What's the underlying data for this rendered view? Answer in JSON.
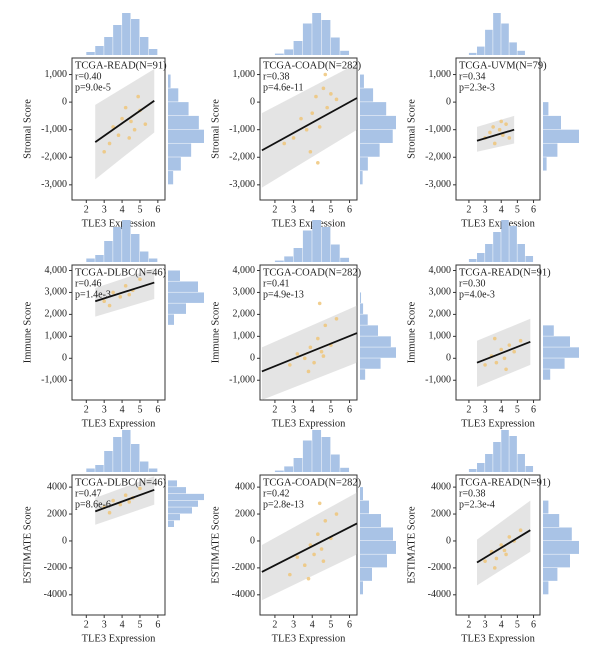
{
  "chart_data": [
    {
      "type": "scatter",
      "title": "TCGA-READ(N=91)",
      "annotations": [
        "r=0.40",
        "p=9.0e-5"
      ],
      "xlabel": "TLE3 Expression",
      "ylabel": "Stromal Score",
      "xlim": [
        1.2,
        6.4
      ],
      "ylim": [
        -3550,
        1600
      ],
      "xticks": [
        2,
        3,
        4,
        5,
        6
      ],
      "yticks": [
        {
          "value": 1000,
          "label": "1,000"
        },
        0,
        {
          "value": -1000,
          "label": "-1,000"
        },
        {
          "value": -2000,
          "label": "-2,000"
        },
        {
          "value": -3000,
          "label": "-3,000"
        }
      ],
      "color": "#efc57a",
      "x": [
        3.0,
        3.5,
        3.8,
        4.0,
        4.2,
        4.5,
        4.7,
        5.0,
        5.3,
        3.3,
        4.4,
        4.9
      ],
      "y": [
        -1800,
        -900,
        -1200,
        -600,
        -200,
        -700,
        -1000,
        -300,
        -800,
        -1500,
        -1300,
        200
      ],
      "fit": {
        "x": [
          2.5,
          5.8
        ],
        "y": [
          -1450,
          50
        ]
      },
      "band": {
        "lower": [
          -2800,
          -1100
        ],
        "upper": [
          -100,
          1200
        ]
      },
      "hist_color": "#a9c3e6",
      "top_hist": {
        "bins": [
          2,
          2.5,
          3,
          3.5,
          4,
          4.5,
          5,
          5.5,
          6
        ],
        "counts": [
          1,
          3,
          6,
          10,
          14,
          12,
          6,
          2
        ]
      },
      "right_hist": {
        "bins": [
          -3000,
          -2500,
          -2000,
          -1500,
          -1000,
          -500,
          0,
          500,
          1000
        ],
        "counts": [
          2,
          5,
          9,
          14,
          12,
          8,
          4,
          1
        ]
      }
    },
    {
      "type": "scatter",
      "title": "TCGA-COAD(N=282)",
      "annotations": [
        "r=0.38",
        "p=4.6e-11"
      ],
      "xlabel": "TLE3 Expression",
      "ylabel": "Stromal Score",
      "xlim": [
        1.2,
        6.4
      ],
      "ylim": [
        -3550,
        1600
      ],
      "xticks": [
        2,
        3,
        4,
        5,
        6
      ],
      "yticks": [
        {
          "value": 1000,
          "label": "1,000"
        },
        0,
        {
          "value": -1000,
          "label": "-1,000"
        },
        {
          "value": -2000,
          "label": "-2,000"
        },
        {
          "value": -3000,
          "label": "-3,000"
        }
      ],
      "color": "#efc57a",
      "x": [
        2.5,
        3.0,
        3.4,
        3.7,
        4.0,
        4.2,
        4.4,
        4.6,
        4.8,
        5.0,
        5.3,
        3.9,
        4.3,
        4.7
      ],
      "y": [
        -1500,
        -1300,
        -600,
        -1000,
        -400,
        200,
        -900,
        500,
        -200,
        300,
        100,
        -1800,
        -2200,
        1000
      ],
      "fit": {
        "x": [
          1.3,
          6.4
        ],
        "y": [
          -1750,
          150
        ]
      },
      "band": {
        "lower": [
          -3100,
          -1000
        ],
        "upper": [
          -400,
          1400
        ]
      },
      "hist_color": "#a9c3e6",
      "top_hist": {
        "bins": [
          2,
          2.5,
          3,
          3.5,
          4,
          4.5,
          5,
          5.5,
          6
        ],
        "counts": [
          2,
          8,
          20,
          45,
          60,
          50,
          25,
          6
        ]
      },
      "right_hist": {
        "bins": [
          -3000,
          -2500,
          -2000,
          -1500,
          -1000,
          -500,
          0,
          500,
          1000
        ],
        "counts": [
          4,
          12,
          30,
          50,
          55,
          40,
          20,
          6
        ]
      }
    },
    {
      "type": "scatter",
      "title": "TCGA-UVM(N=79)",
      "annotations": [
        "r=0.34",
        "p=2.3e-3"
      ],
      "xlabel": "TLE3 Expression",
      "ylabel": "Stromal Score",
      "xlim": [
        1.2,
        6.4
      ],
      "ylim": [
        -3550,
        1600
      ],
      "xticks": [
        2,
        3,
        4,
        5,
        6
      ],
      "yticks": [
        {
          "value": 1000,
          "label": "1,000"
        },
        0,
        {
          "value": -1000,
          "label": "-1,000"
        },
        {
          "value": -2000,
          "label": "-2,000"
        },
        {
          "value": -3000,
          "label": "-3,000"
        }
      ],
      "color": "#efc57a",
      "x": [
        3.0,
        3.3,
        3.6,
        3.9,
        4.1,
        4.3,
        4.5,
        3.5,
        4.0
      ],
      "y": [
        -1300,
        -1100,
        -1500,
        -1000,
        -1200,
        -800,
        -1300,
        -900,
        -700
      ],
      "fit": {
        "x": [
          2.5,
          4.8
        ],
        "y": [
          -1400,
          -1000
        ]
      },
      "band": {
        "lower": [
          -1800,
          -1500
        ],
        "upper": [
          -900,
          -500
        ]
      },
      "hist_color": "#a9c3e6",
      "top_hist": {
        "bins": [
          2,
          2.5,
          3,
          3.5,
          4,
          4.5,
          5,
          5.5,
          6
        ],
        "counts": [
          1,
          4,
          12,
          20,
          15,
          6,
          2,
          0
        ]
      },
      "right_hist": {
        "bins": [
          -2500,
          -2000,
          -1500,
          -1000,
          -500,
          0
        ],
        "counts": [
          2,
          8,
          20,
          10,
          3
        ]
      }
    },
    {
      "type": "scatter",
      "title": "TCGA-DLBC(N=46)",
      "annotations": [
        "r=0.46",
        "p=1.4e-3"
      ],
      "xlabel": "TLE3 Expression",
      "ylabel": "Immune Score",
      "xlim": [
        1.2,
        6.4
      ],
      "ylim": [
        -1900,
        4250
      ],
      "xticks": [
        2,
        3,
        4,
        5,
        6
      ],
      "yticks": [
        {
          "value": 4000,
          "label": "4,000"
        },
        {
          "value": 3000,
          "label": "3,000"
        },
        {
          "value": 2000,
          "label": "2,000"
        },
        {
          "value": 1000,
          "label": "1,000"
        },
        0,
        {
          "value": -1000,
          "label": "-1,000"
        }
      ],
      "color": "#efc57a",
      "x": [
        3.0,
        3.5,
        3.9,
        4.2,
        4.6,
        5.0,
        3.3,
        4.4
      ],
      "y": [
        2600,
        3000,
        2800,
        3300,
        3100,
        3600,
        2400,
        2900
      ],
      "fit": {
        "x": [
          2.5,
          5.8
        ],
        "y": [
          2600,
          3450
        ]
      },
      "band": {
        "lower": [
          1900,
          2700
        ],
        "upper": [
          3200,
          4100
        ]
      },
      "hist_color": "#a9c3e6",
      "top_hist": {
        "bins": [
          2,
          2.5,
          3,
          3.5,
          4,
          4.5,
          5,
          5.5,
          6
        ],
        "counts": [
          1,
          2,
          6,
          10,
          12,
          8,
          3,
          1
        ]
      },
      "right_hist": {
        "bins": [
          1500,
          2000,
          2500,
          3000,
          3500,
          4000
        ],
        "counts": [
          2,
          6,
          12,
          10,
          4
        ]
      }
    },
    {
      "type": "scatter",
      "title": "TCGA-COAD(N=282)",
      "annotations": [
        "r=0.41",
        "p=4.9e-13"
      ],
      "xlabel": "TLE3 Expression",
      "ylabel": "Immune Score",
      "xlim": [
        1.2,
        6.4
      ],
      "ylim": [
        -1900,
        4250
      ],
      "xticks": [
        2,
        3,
        4,
        5,
        6
      ],
      "yticks": [
        {
          "value": 4000,
          "label": "4,000"
        },
        {
          "value": 3000,
          "label": "3,000"
        },
        {
          "value": 2000,
          "label": "2,000"
        },
        {
          "value": 1000,
          "label": "1,000"
        },
        0,
        {
          "value": -1000,
          "label": "-1,000"
        }
      ],
      "color": "#efc57a",
      "x": [
        2.8,
        3.2,
        3.6,
        3.9,
        4.1,
        4.3,
        4.5,
        4.7,
        5.0,
        5.3,
        3.8,
        4.4,
        4.6
      ],
      "y": [
        -300,
        200,
        0,
        500,
        -200,
        900,
        300,
        1500,
        600,
        1800,
        -600,
        2500,
        100
      ],
      "fit": {
        "x": [
          1.3,
          6.4
        ],
        "y": [
          -600,
          1150
        ]
      },
      "band": {
        "lower": [
          -1900,
          -200
        ],
        "upper": [
          500,
          2400
        ]
      },
      "hist_color": "#a9c3e6",
      "top_hist": {
        "bins": [
          2,
          2.5,
          3,
          3.5,
          4,
          4.5,
          5,
          5.5,
          6
        ],
        "counts": [
          2,
          8,
          20,
          45,
          60,
          50,
          25,
          6
        ]
      },
      "right_hist": {
        "bins": [
          -1000,
          -500,
          0,
          500,
          1000,
          1500,
          2000,
          2500,
          3000
        ],
        "counts": [
          10,
          40,
          70,
          60,
          35,
          15,
          6,
          2
        ]
      }
    },
    {
      "type": "scatter",
      "title": "TCGA-READ(N=91)",
      "annotations": [
        "r=0.30",
        "p=4.0e-3"
      ],
      "xlabel": "TLE3 Expression",
      "ylabel": "Immune Score",
      "xlim": [
        1.2,
        6.4
      ],
      "ylim": [
        -1900,
        4250
      ],
      "xticks": [
        2,
        3,
        4,
        5,
        6
      ],
      "yticks": [
        {
          "value": 4000,
          "label": "4,000"
        },
        {
          "value": 3000,
          "label": "3,000"
        },
        {
          "value": 2000,
          "label": "2,000"
        },
        {
          "value": 1000,
          "label": "1,000"
        },
        0,
        {
          "value": -1000,
          "label": "-1,000"
        }
      ],
      "color": "#efc57a",
      "x": [
        3.0,
        3.4,
        3.7,
        4.0,
        4.2,
        4.5,
        4.8,
        5.2,
        3.6,
        4.3
      ],
      "y": [
        -300,
        100,
        -200,
        400,
        0,
        600,
        300,
        800,
        900,
        -500
      ],
      "fit": {
        "x": [
          2.5,
          5.8
        ],
        "y": [
          -200,
          750
        ]
      },
      "band": {
        "lower": [
          -1300,
          -300
        ],
        "upper": [
          800,
          1800
        ]
      },
      "hist_color": "#a9c3e6",
      "top_hist": {
        "bins": [
          2,
          2.5,
          3,
          3.5,
          4,
          4.5,
          5,
          5.5,
          6
        ],
        "counts": [
          1,
          3,
          6,
          10,
          14,
          12,
          6,
          2
        ]
      },
      "right_hist": {
        "bins": [
          -1000,
          -500,
          0,
          500,
          1000,
          1500
        ],
        "counts": [
          4,
          12,
          20,
          15,
          6
        ]
      }
    },
    {
      "type": "scatter",
      "title": "TCGA-DLBC(N=46)",
      "annotations": [
        "r=0.47",
        "p=8.6e-6"
      ],
      "xlabel": "TLE3 Expression",
      "ylabel": "ESTIMATE Score",
      "xlim": [
        1.2,
        6.4
      ],
      "ylim": [
        -5500,
        4900
      ],
      "xticks": [
        2,
        3,
        4,
        5,
        6
      ],
      "yticks": [
        4000,
        2000,
        0,
        -2000,
        -4000
      ],
      "color": "#efc57a",
      "x": [
        3.0,
        3.5,
        3.9,
        4.2,
        4.6,
        5.0,
        3.3,
        4.4
      ],
      "y": [
        2500,
        3000,
        2700,
        3400,
        3200,
        3900,
        2100,
        2900
      ],
      "fit": {
        "x": [
          2.5,
          5.8
        ],
        "y": [
          2200,
          3800
        ]
      },
      "band": {
        "lower": [
          1200,
          2700
        ],
        "upper": [
          3200,
          4800
        ]
      },
      "hist_color": "#a9c3e6",
      "top_hist": {
        "bins": [
          2,
          2.5,
          3,
          3.5,
          4,
          4.5,
          5,
          5.5,
          6
        ],
        "counts": [
          1,
          2,
          6,
          10,
          12,
          8,
          3,
          1
        ]
      },
      "right_hist": {
        "bins": [
          1000,
          1500,
          2000,
          2500,
          3000,
          3500,
          4000,
          4500
        ],
        "counts": [
          2,
          4,
          8,
          10,
          12,
          6,
          3
        ]
      }
    },
    {
      "type": "scatter",
      "title": "TCGA-COAD(N=282)",
      "annotations": [
        "r=0.42",
        "p=2.8e-13"
      ],
      "xlabel": "TLE3 Expression",
      "ylabel": "ESTIMATE Score",
      "xlim": [
        1.2,
        6.4
      ],
      "ylim": [
        -5500,
        4900
      ],
      "xticks": [
        2,
        3,
        4,
        5,
        6
      ],
      "yticks": [
        4000,
        2000,
        0,
        -2000,
        -4000
      ],
      "color": "#efc57a",
      "x": [
        2.8,
        3.2,
        3.6,
        3.9,
        4.1,
        4.3,
        4.5,
        4.7,
        5.0,
        5.3,
        3.8,
        4.4,
        4.6
      ],
      "y": [
        -2500,
        -1200,
        -1800,
        -300,
        -1000,
        500,
        -600,
        1500,
        200,
        2000,
        -2800,
        2800,
        -1500
      ],
      "fit": {
        "x": [
          1.3,
          6.4
        ],
        "y": [
          -2300,
          1300
        ]
      },
      "band": {
        "lower": [
          -4400,
          -1000
        ],
        "upper": [
          -300,
          3600
        ]
      },
      "hist_color": "#a9c3e6",
      "top_hist": {
        "bins": [
          2,
          2.5,
          3,
          3.5,
          4,
          4.5,
          5,
          5.5,
          6
        ],
        "counts": [
          2,
          8,
          20,
          45,
          60,
          50,
          25,
          6
        ]
      },
      "right_hist": {
        "bins": [
          -4000,
          -3000,
          -2000,
          -1000,
          0,
          1000,
          2000,
          3000,
          4000
        ],
        "counts": [
          5,
          20,
          45,
          60,
          55,
          35,
          15,
          5
        ]
      }
    },
    {
      "type": "scatter",
      "title": "TCGA-READ(N=91)",
      "annotations": [
        "r=0.38",
        "p=2.3e-4"
      ],
      "xlabel": "TLE3 Expression",
      "ylabel": "ESTIMATE Score",
      "xlim": [
        1.2,
        6.4
      ],
      "ylim": [
        -5500,
        4900
      ],
      "xticks": [
        2,
        3,
        4,
        5,
        6
      ],
      "yticks": [
        4000,
        2000,
        0,
        -2000,
        -4000
      ],
      "color": "#efc57a",
      "x": [
        3.0,
        3.4,
        3.7,
        4.0,
        4.2,
        4.5,
        4.8,
        5.2,
        3.6,
        4.3
      ],
      "y": [
        -1500,
        -800,
        -1300,
        -300,
        -700,
        300,
        0,
        800,
        -2000,
        -1000
      ],
      "fit": {
        "x": [
          2.5,
          5.8
        ],
        "y": [
          -1600,
          800
        ]
      },
      "band": {
        "lower": [
          -3300,
          -800
        ],
        "upper": [
          100,
          3000
        ]
      },
      "hist_color": "#a9c3e6",
      "top_hist": {
        "bins": [
          2,
          2.5,
          3,
          3.5,
          4,
          4.5,
          5,
          5.5,
          6
        ],
        "counts": [
          1,
          3,
          6,
          10,
          14,
          12,
          6,
          2
        ]
      },
      "right_hist": {
        "bins": [
          -4000,
          -3000,
          -2000,
          -1000,
          0,
          1000,
          2000,
          3000
        ],
        "counts": [
          3,
          8,
          15,
          20,
          16,
          9,
          3
        ]
      }
    }
  ]
}
